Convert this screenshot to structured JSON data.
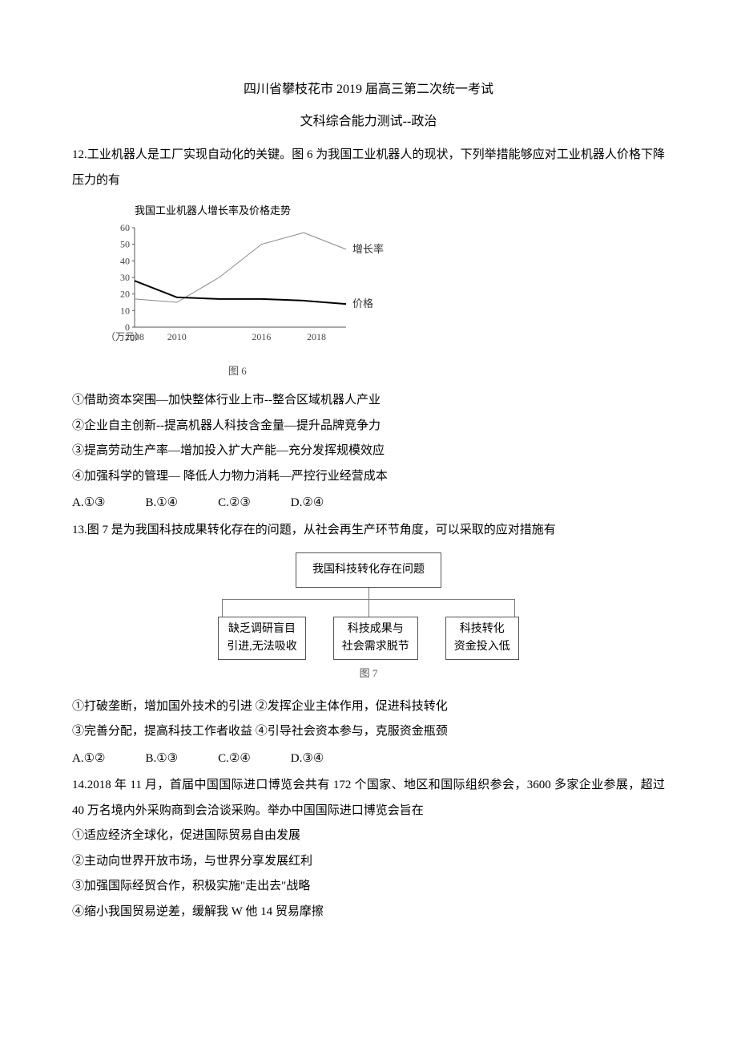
{
  "title": "四川省攀枝花市 2019 届高三第二次统一考试",
  "subtitle": "文科综合能力测试--政治",
  "q12": {
    "stem1": "12.工业机器人是工厂实现自动化的关键。图 6 为我国工业机器人的现状，下列举措能够应对工业机器人价格下降压力的有",
    "chart": {
      "type": "line",
      "title": "我国工业机器人增长率及价格走势",
      "y_ticks": [
        0,
        10,
        20,
        30,
        40,
        50,
        60
      ],
      "x_ticks": [
        "2008",
        "2010",
        "2016",
        "2018"
      ],
      "x_unit": "（万元）",
      "fig_label": "图 6",
      "series": [
        {
          "name": "增长率",
          "color": "#888888",
          "width": 1,
          "points": [
            {
              "x": 0,
              "y": 17
            },
            {
              "x": 1,
              "y": 15
            },
            {
              "x": 2,
              "y": 30
            },
            {
              "x": 3,
              "y": 50
            },
            {
              "x": 4,
              "y": 57
            },
            {
              "x": 5,
              "y": 47
            }
          ]
        },
        {
          "name": "价格",
          "color": "#000000",
          "width": 2,
          "points": [
            {
              "x": 0,
              "y": 28
            },
            {
              "x": 1,
              "y": 18
            },
            {
              "x": 2,
              "y": 17
            },
            {
              "x": 3,
              "y": 17
            },
            {
              "x": 4,
              "y": 16
            },
            {
              "x": 5,
              "y": 14
            }
          ]
        }
      ]
    },
    "choices": [
      "①借助资本突围—加快整体行业上市--整合区域机器人产业",
      "②企业自主创新--提高机器人科技含金量—提升品牌竞争力",
      "③提高劳动生产率—增加投入扩大产能—充分发挥规模效应",
      "④加强科学的管理— 降低人力物力消耗—严控行业经营成本"
    ],
    "options": [
      "A.①③",
      "B.①④",
      "C.②③",
      "D.②④"
    ]
  },
  "q13": {
    "stem": "13.图 7 是为我国科技成果转化存在的问题，从社会再生产环节角度，可以采取的应对措施有",
    "diagram": {
      "root": "我国科技转化存在问题",
      "children": [
        "缺乏调研盲目\n引进,无法吸收",
        "科技成果与\n社会需求脱节",
        "科技转化\n资金投入低"
      ],
      "fig_label": "图 7"
    },
    "choices": [
      "①打破垄断，增加国外技术的引进  ②发挥企业主体作用，促进科技转化",
      "③完善分配，提高科技工作者收益  ④引导社会资本参与，克服资金瓶颈"
    ],
    "options": [
      "A.①②",
      "B.①③",
      "C.②④",
      "D.③④"
    ]
  },
  "q14": {
    "stem": "14.2018 年 11 月，首届中国国际进口博览会共有 172 个国家、地区和国际组织参会，3600 多家企业参展，超过 40 万名境内外采购商到会洽谈采购。举办中国国际进口博览会旨在",
    "choices": [
      "①适应经济全球化，促进国际贸易自由发展",
      "②主动向世界开放市场，与世界分享发展红利",
      "③加强国际经贸合作，积极实施\"走出去\"战略",
      "④缩小我国贸易逆差，缓解我 W 他 14 贸易摩擦"
    ]
  }
}
